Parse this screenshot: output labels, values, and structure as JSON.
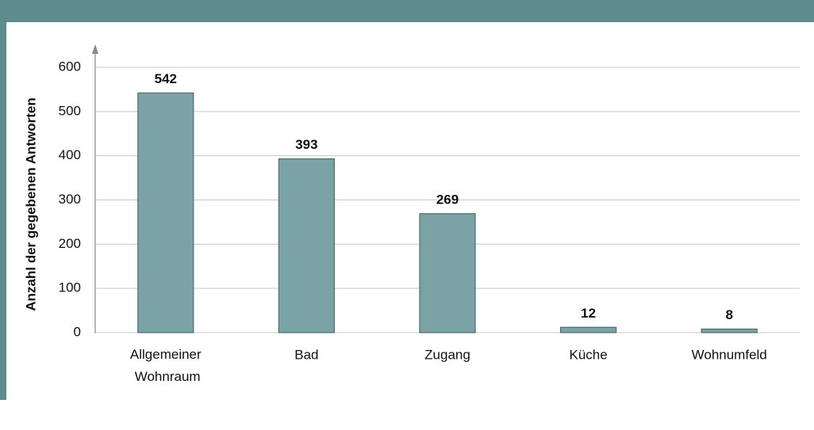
{
  "chart_data": {
    "type": "bar",
    "y_label": "Anzahl der gegebenen Antworten",
    "categories": [
      "Allgemeiner Wohnraum",
      "Bad",
      "Zugang",
      "Küche",
      "Wohnumfeld"
    ],
    "values": [
      542,
      393,
      269,
      12,
      8
    ],
    "color": "#7ba3a5",
    "ylim": [
      0,
      600
    ],
    "yticks": [
      0,
      100,
      200,
      300,
      400,
      500,
      600
    ],
    "grid": true
  }
}
